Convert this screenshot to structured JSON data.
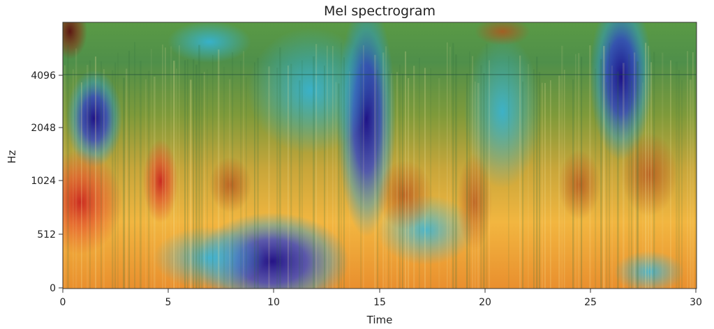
{
  "chart_data": {
    "type": "heatmap",
    "title": "Mel spectrogram",
    "xlabel": "Time",
    "ylabel": "Hz",
    "x_ticks": [
      0,
      5,
      10,
      15,
      20,
      25,
      30
    ],
    "y_ticks": [
      0,
      512,
      1024,
      2048,
      4096
    ],
    "xlim": [
      0,
      30
    ],
    "y_scale": "mel",
    "colormap": "jet overlaid on spectrogram",
    "grid": false
  }
}
